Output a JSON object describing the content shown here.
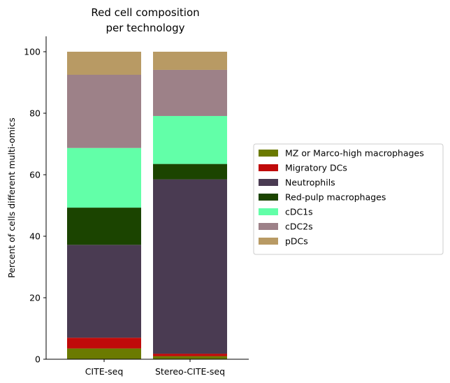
{
  "chart_data": {
    "type": "bar",
    "stacked": true,
    "title": "Red cell composition\nper technology",
    "xlabel": "",
    "ylabel": "Percent of cells different multi-omics",
    "ylim": [
      0,
      105
    ],
    "yticks": [
      0,
      20,
      40,
      60,
      80,
      100
    ],
    "categories": [
      "CITE-seq",
      "Stereo-CITE-seq"
    ],
    "legend_position": "right",
    "grid": false,
    "series": [
      {
        "name": "MZ or Marco-high macrophages",
        "color": "#6b7a00",
        "values": [
          3.5,
          1.0
        ]
      },
      {
        "name": "Migratory DCs",
        "color": "#c00a0a",
        "values": [
          3.5,
          0.8
        ]
      },
      {
        "name": "Neutrophils",
        "color": "#4a3b52",
        "values": [
          30.2,
          56.7
        ]
      },
      {
        "name": "Red-pulp macrophages",
        "color": "#1b4400",
        "values": [
          12.1,
          5.0
        ]
      },
      {
        "name": "cDC1s",
        "color": "#62ffa8",
        "values": [
          19.4,
          15.6
        ]
      },
      {
        "name": "cDC2s",
        "color": "#9d8188",
        "values": [
          23.8,
          15.0
        ]
      },
      {
        "name": "pDCs",
        "color": "#b89a64",
        "values": [
          7.5,
          5.9
        ]
      }
    ]
  }
}
